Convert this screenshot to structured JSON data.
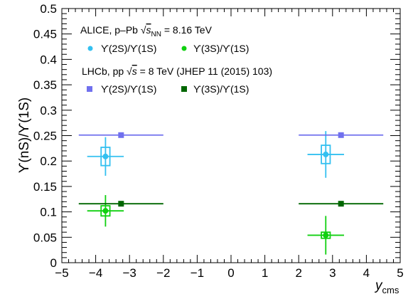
{
  "chart_data": {
    "type": "scatter",
    "xlabel": "y",
    "xlabel_sub": "cms",
    "ylabel": "ϒ(nS)/ϒ(1S)",
    "xlim": [
      -5,
      5
    ],
    "ylim": [
      0,
      0.5
    ],
    "x_ticks": [
      -5,
      -4,
      -3,
      -2,
      -1,
      0,
      1,
      2,
      3,
      4,
      5
    ],
    "y_ticks": [
      0,
      0.05,
      0.1,
      0.15,
      0.2,
      0.25,
      0.3,
      0.35,
      0.4,
      0.45,
      0.5
    ],
    "x_tick_labels": [
      "−5",
      "−4",
      "−3",
      "−2",
      "−1",
      "0",
      "1",
      "2",
      "3",
      "4",
      "5"
    ],
    "y_tick_labels": [
      "0",
      "0.05",
      "0.1",
      "0.15",
      "0.2",
      "0.25",
      "0.3",
      "0.35",
      "0.4",
      "0.45",
      "0.5"
    ],
    "grid": false,
    "legend": {
      "position": "top-left",
      "alice_header_pre": "ALICE, p–Pb ",
      "alice_header_s": "s",
      "alice_header_sub": "NN",
      "alice_header_post": " = 8.16 TeV",
      "lhcb_header_pre": "LHCb, pp ",
      "lhcb_header_s": "s",
      "lhcb_header_post": " = 8 TeV (JHEP 11 (2015) 103)"
    },
    "series": [
      {
        "name": "ϒ(2S)/ϒ(1S)",
        "group": "ALICE",
        "color": "#33c0f0",
        "marker": "circle",
        "points": [
          {
            "x": -3.71,
            "y": 0.209,
            "xerr": 0.54,
            "yerr": 0.038,
            "syst_x": 0.13,
            "syst_y": 0.018
          },
          {
            "x": 2.8,
            "y": 0.213,
            "xerr": 0.54,
            "yerr": 0.046,
            "syst_x": 0.13,
            "syst_y": 0.018
          }
        ]
      },
      {
        "name": "ϒ(3S)/ϒ(1S)",
        "group": "ALICE",
        "color": "#10d010",
        "marker": "circle",
        "points": [
          {
            "x": -3.71,
            "y": 0.102,
            "xerr": 0.54,
            "yerr": 0.031,
            "syst_x": 0.13,
            "syst_y": 0.01
          },
          {
            "x": 2.8,
            "y": 0.054,
            "xerr": 0.54,
            "yerr": 0.038,
            "syst_x": 0.13,
            "syst_y": 0.006
          }
        ]
      },
      {
        "name": "ϒ(2S)/ϒ(1S)",
        "group": "LHCb",
        "color": "#7070ee",
        "marker": "square",
        "points": [
          {
            "x": -3.25,
            "y": 0.251,
            "xerr": 1.25,
            "yerr": 0.002
          },
          {
            "x": 3.25,
            "y": 0.251,
            "xerr": 1.25,
            "yerr": 0.002
          }
        ]
      },
      {
        "name": "ϒ(3S)/ϒ(1S)",
        "group": "LHCb",
        "color": "#006600",
        "marker": "square",
        "points": [
          {
            "x": -3.25,
            "y": 0.116,
            "xerr": 1.25,
            "yerr": 0.002
          },
          {
            "x": 3.25,
            "y": 0.116,
            "xerr": 1.25,
            "yerr": 0.002
          }
        ]
      }
    ]
  }
}
